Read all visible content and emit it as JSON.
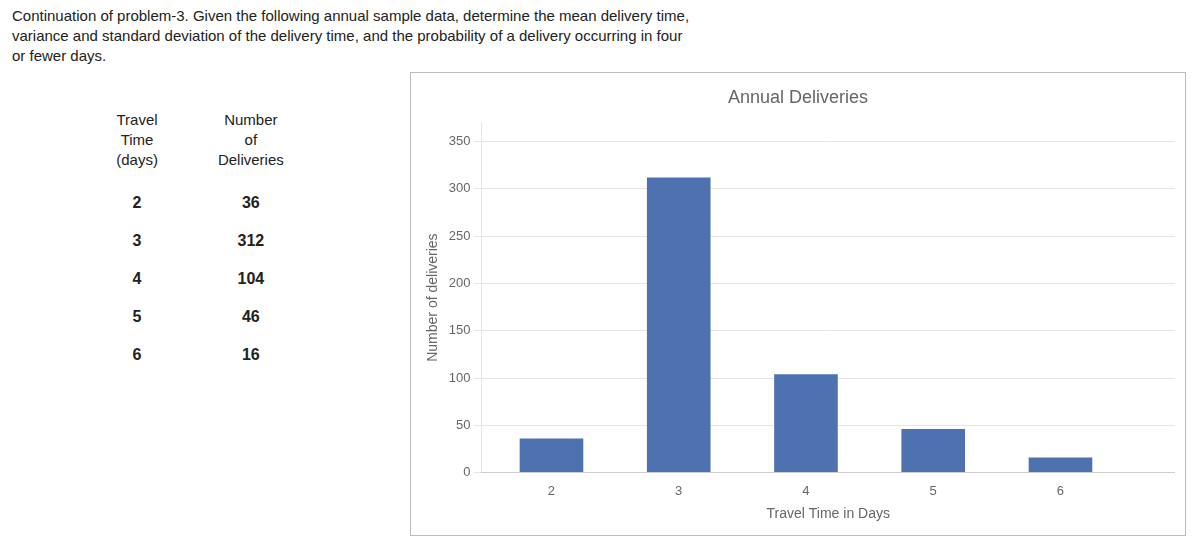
{
  "chart_data": {
    "type": "bar",
    "title": "Annual Deliveries",
    "xlabel": "Travel Time in Days",
    "ylabel": "Number of deliveries",
    "x": [
      2,
      3,
      4,
      5,
      6
    ],
    "values": [
      36,
      312,
      104,
      46,
      16
    ],
    "color": "#4E72B0",
    "xlim": [
      1.45,
      6.9
    ],
    "xticks": [
      2,
      3,
      4,
      5,
      6
    ],
    "ylim": [
      0,
      370
    ],
    "yticks": [
      0,
      50,
      100,
      150,
      200,
      250,
      300,
      350
    ],
    "grid": true,
    "annotations": [
      "Continuation of problem-3.  Given the following annual sample data, determine the mean delivery time,",
      "variance and standard deviation of the delivery time, and the probability of a delivery occurring in four",
      "or fewer days."
    ],
    "table": {
      "columns": [
        [
          "Travel",
          "Time",
          "(days)"
        ],
        [
          "Number",
          "of",
          "Deliveries"
        ]
      ],
      "rows": [
        [
          "2",
          "36"
        ],
        [
          "3",
          "312"
        ],
        [
          "4",
          "104"
        ],
        [
          "5",
          "46"
        ],
        [
          "6",
          "16"
        ]
      ]
    }
  }
}
